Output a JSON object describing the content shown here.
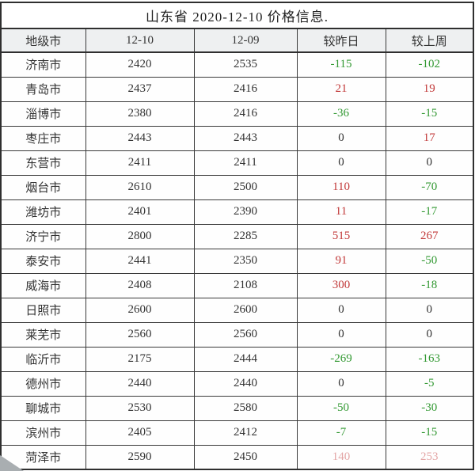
{
  "title": "山东省 2020-12-10 价格信息.",
  "table": {
    "headers": [
      "地级市",
      "12-10",
      "12-09",
      "较昨日",
      "较上周"
    ],
    "rows": [
      {
        "city": "济南市",
        "price_1210": "2420",
        "price_1209": "2535",
        "vs_yesterday": "-115",
        "vs_last_week": "-102",
        "faded_changes": false
      },
      {
        "city": "青岛市",
        "price_1210": "2437",
        "price_1209": "2416",
        "vs_yesterday": "21",
        "vs_last_week": "19",
        "faded_changes": false
      },
      {
        "city": "淄博市",
        "price_1210": "2380",
        "price_1209": "2416",
        "vs_yesterday": "-36",
        "vs_last_week": "-15",
        "faded_changes": false
      },
      {
        "city": "枣庄市",
        "price_1210": "2443",
        "price_1209": "2443",
        "vs_yesterday": "0",
        "vs_last_week": "17",
        "faded_changes": false
      },
      {
        "city": "东营市",
        "price_1210": "2411",
        "price_1209": "2411",
        "vs_yesterday": "0",
        "vs_last_week": "0",
        "faded_changes": false
      },
      {
        "city": "烟台市",
        "price_1210": "2610",
        "price_1209": "2500",
        "vs_yesterday": "110",
        "vs_last_week": "-70",
        "faded_changes": false
      },
      {
        "city": "潍坊市",
        "price_1210": "2401",
        "price_1209": "2390",
        "vs_yesterday": "11",
        "vs_last_week": "-17",
        "faded_changes": false
      },
      {
        "city": "济宁市",
        "price_1210": "2800",
        "price_1209": "2285",
        "vs_yesterday": "515",
        "vs_last_week": "267",
        "faded_changes": false
      },
      {
        "city": "泰安市",
        "price_1210": "2441",
        "price_1209": "2350",
        "vs_yesterday": "91",
        "vs_last_week": "-50",
        "faded_changes": false
      },
      {
        "city": "威海市",
        "price_1210": "2408",
        "price_1209": "2108",
        "vs_yesterday": "300",
        "vs_last_week": "-18",
        "faded_changes": false
      },
      {
        "city": "日照市",
        "price_1210": "2600",
        "price_1209": "2600",
        "vs_yesterday": "0",
        "vs_last_week": "0",
        "faded_changes": false
      },
      {
        "city": "莱芜市",
        "price_1210": "2560",
        "price_1209": "2560",
        "vs_yesterday": "0",
        "vs_last_week": "0",
        "faded_changes": false
      },
      {
        "city": "临沂市",
        "price_1210": "2175",
        "price_1209": "2444",
        "vs_yesterday": "-269",
        "vs_last_week": "-163",
        "faded_changes": false
      },
      {
        "city": "德州市",
        "price_1210": "2440",
        "price_1209": "2440",
        "vs_yesterday": "0",
        "vs_last_week": "-5",
        "faded_changes": false
      },
      {
        "city": "聊城市",
        "price_1210": "2530",
        "price_1209": "2580",
        "vs_yesterday": "-50",
        "vs_last_week": "-30",
        "faded_changes": false
      },
      {
        "city": "滨州市",
        "price_1210": "2405",
        "price_1209": "2412",
        "vs_yesterday": "-7",
        "vs_last_week": "-15",
        "faded_changes": false
      },
      {
        "city": "菏泽市",
        "price_1210": "2590",
        "price_1209": "2450",
        "vs_yesterday": "140",
        "vs_last_week": "253",
        "faded_changes": true
      }
    ]
  },
  "colors": {
    "positive_change": "#c23a3a",
    "negative_change": "#339933",
    "neutral": "#333333",
    "header_bg": "#eef0f1",
    "border": "#2f2f2f",
    "corner_triangle": "#a9aeb1"
  },
  "chart_data": {
    "type": "table",
    "title": "山东省 2020-12-10 价格信息",
    "columns": [
      "地级市",
      "12-10",
      "12-09",
      "较昨日",
      "较上周"
    ],
    "rows": [
      [
        "济南市",
        2420,
        2535,
        -115,
        -102
      ],
      [
        "青岛市",
        2437,
        2416,
        21,
        19
      ],
      [
        "淄博市",
        2380,
        2416,
        -36,
        -15
      ],
      [
        "枣庄市",
        2443,
        2443,
        0,
        17
      ],
      [
        "东营市",
        2411,
        2411,
        0,
        0
      ],
      [
        "烟台市",
        2610,
        2500,
        110,
        -70
      ],
      [
        "潍坊市",
        2401,
        2390,
        11,
        -17
      ],
      [
        "济宁市",
        2800,
        2285,
        515,
        267
      ],
      [
        "泰安市",
        2441,
        2350,
        91,
        -50
      ],
      [
        "威海市",
        2408,
        2108,
        300,
        -18
      ],
      [
        "日照市",
        2600,
        2600,
        0,
        0
      ],
      [
        "莱芜市",
        2560,
        2560,
        0,
        0
      ],
      [
        "临沂市",
        2175,
        2444,
        -269,
        -163
      ],
      [
        "德州市",
        2440,
        2440,
        0,
        -5
      ],
      [
        "聊城市",
        2530,
        2580,
        -50,
        -30
      ],
      [
        "滨州市",
        2405,
        2412,
        -7,
        -15
      ],
      [
        "菏泽市",
        2590,
        2450,
        140,
        253
      ]
    ],
    "notes": "positive changes rendered red, negative changes green, zero black; last row change cells appear faded/washed out"
  }
}
